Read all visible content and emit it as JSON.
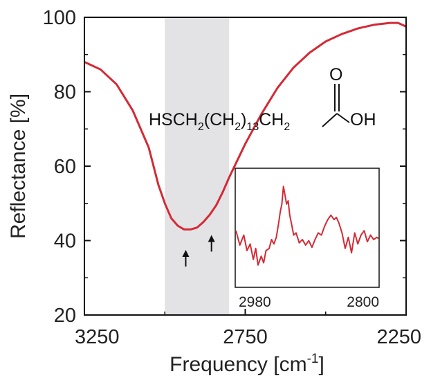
{
  "chart_data": {
    "type": "line",
    "title": "",
    "xlabel": "Frequency [cm",
    "xlabel_superscript": "-1",
    "xlabel_suffix": "]",
    "ylabel": "Reflectance [%]",
    "xlim": [
      3250,
      2250
    ],
    "ylim": [
      20,
      100
    ],
    "x_reversed": true,
    "x_ticks": [
      "3250",
      "2750",
      "2250"
    ],
    "y_ticks": [
      "20",
      "40",
      "60",
      "80",
      "100"
    ],
    "grid": false,
    "line_color": "#d42a35",
    "shade_color": "#e3e3e6",
    "shaded_region": [
      3000,
      2800
    ],
    "series": [
      {
        "x": [
          3250,
          3200,
          3150,
          3100,
          3050,
          3020,
          3000,
          2980,
          2960,
          2940,
          2920,
          2900,
          2880,
          2860,
          2840,
          2820,
          2800,
          2750,
          2700,
          2650,
          2600,
          2550,
          2500,
          2450,
          2400,
          2350,
          2300,
          2275,
          2250
        ],
        "y": [
          88,
          86,
          82,
          75,
          65,
          55,
          50,
          46,
          44,
          43,
          43,
          43.5,
          45,
          47,
          49.5,
          53,
          57,
          66,
          74,
          81,
          86.5,
          90.5,
          93.5,
          95.5,
          97,
          98,
          98.5,
          98.5,
          97.5
        ]
      }
    ],
    "annotations": [
      {
        "type": "arrow",
        "x": 2935,
        "y": 37.5,
        "direction": "up"
      },
      {
        "type": "arrow",
        "x": 2855,
        "y": 41.5,
        "direction": "up"
      }
    ],
    "formula": {
      "main": "HSCH",
      "sub1": "2",
      "mid1": "(CH",
      "sub2": "2",
      "mid2": ")",
      "sub3": "13",
      "mid3": "CH",
      "sub4": "2",
      "oxygen": "O",
      "hydroxyl": "OH"
    },
    "inset": {
      "type": "line",
      "xlim": [
        2980,
        2800
      ],
      "x_tick_labels": [
        "2980",
        "2800"
      ],
      "x": [
        2980,
        2975,
        2970,
        2966,
        2962,
        2958,
        2955,
        2952,
        2948,
        2945,
        2942,
        2938,
        2935,
        2932,
        2929,
        2926,
        2924,
        2922,
        2920,
        2918,
        2916,
        2914,
        2912,
        2910,
        2907,
        2904,
        2900,
        2896,
        2892,
        2888,
        2884,
        2880,
        2876,
        2872,
        2868,
        2864,
        2860,
        2856,
        2853,
        2850,
        2846,
        2842,
        2838,
        2834,
        2830,
        2826,
        2822,
        2818,
        2814,
        2810,
        2806,
        2802,
        2800
      ],
      "y": [
        0.48,
        0.35,
        0.44,
        0.3,
        0.36,
        0.22,
        0.32,
        0.17,
        0.25,
        0.19,
        0.3,
        0.32,
        0.4,
        0.36,
        0.42,
        0.55,
        0.65,
        0.72,
        0.88,
        0.8,
        0.72,
        0.75,
        0.62,
        0.55,
        0.44,
        0.46,
        0.37,
        0.4,
        0.35,
        0.39,
        0.33,
        0.4,
        0.46,
        0.44,
        0.52,
        0.58,
        0.62,
        0.58,
        0.6,
        0.55,
        0.46,
        0.32,
        0.42,
        0.28,
        0.46,
        0.36,
        0.44,
        0.48,
        0.38,
        0.44,
        0.4,
        0.42,
        0.41
      ]
    }
  }
}
